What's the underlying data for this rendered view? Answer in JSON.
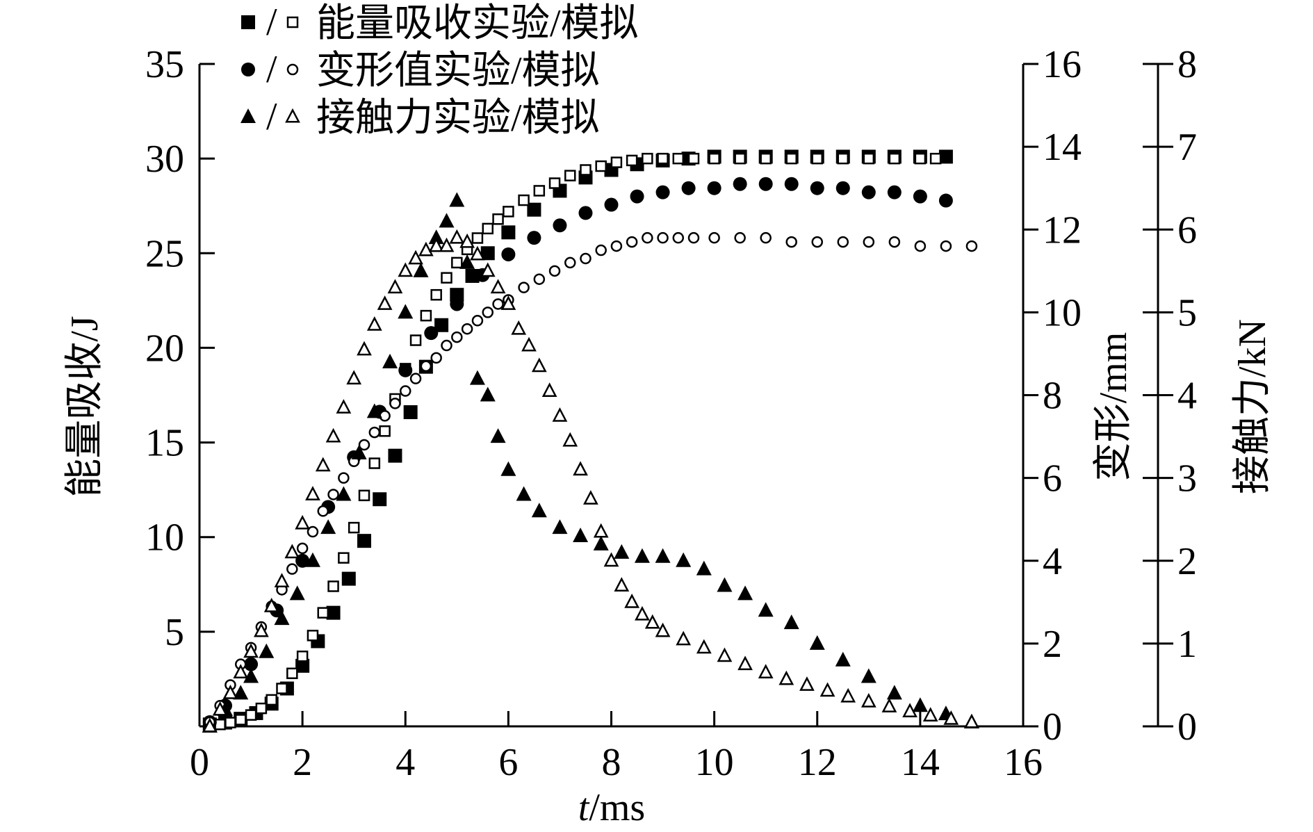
{
  "chart_data": {
    "type": "scatter",
    "title": "",
    "xlabel": {
      "italic": "t",
      "rest": "/ms"
    },
    "xlim": [
      0,
      16
    ],
    "xticks": [
      "0",
      "2",
      "4",
      "6",
      "8",
      "10",
      "12",
      "14",
      "16"
    ],
    "y_axes": [
      {
        "id": "energy",
        "side": "left",
        "label": "能量吸收/J",
        "ylim": [
          0,
          35
        ],
        "ticks": [
          "5",
          "10",
          "15",
          "20",
          "25",
          "30",
          "35"
        ],
        "tick_values": [
          5,
          10,
          15,
          20,
          25,
          30,
          35
        ]
      },
      {
        "id": "deform",
        "side": "right",
        "label": "变形/mm",
        "ylim": [
          0,
          16
        ],
        "ticks": [
          "0",
          "2",
          "4",
          "6",
          "8",
          "10",
          "12",
          "14",
          "16"
        ],
        "tick_values": [
          0,
          2,
          4,
          6,
          8,
          10,
          12,
          14,
          16
        ]
      },
      {
        "id": "force",
        "side": "right-outer",
        "label": "接触力/kN",
        "ylim": [
          0,
          8
        ],
        "ticks": [
          "0",
          "1",
          "2",
          "3",
          "4",
          "5",
          "6",
          "7",
          "8"
        ],
        "tick_values": [
          0,
          1,
          2,
          3,
          4,
          5,
          6,
          7,
          8
        ]
      }
    ],
    "legend": {
      "placement": "top-left",
      "entries": [
        {
          "symbols": "■/□",
          "label": "能量吸收实验/模拟"
        },
        {
          "symbols": "●/○",
          "label": "变形值实验/模拟"
        },
        {
          "symbols": "▲/△",
          "label": "接触力实验/模拟"
        }
      ]
    },
    "series": [
      {
        "id": "energy_exp",
        "axis": "energy",
        "marker": "square",
        "filled": true,
        "x": [
          0.2,
          0.5,
          0.8,
          1.1,
          1.4,
          1.7,
          2.0,
          2.3,
          2.6,
          2.9,
          3.2,
          3.5,
          3.8,
          4.1,
          4.4,
          4.7,
          5.0,
          5.3,
          5.6,
          6.0,
          6.5,
          7.0,
          7.5,
          8.0,
          8.5,
          9.0,
          9.5,
          10.0,
          10.5,
          11.0,
          11.5,
          12.0,
          12.5,
          13.0,
          13.5,
          14.0,
          14.5
        ],
        "y": [
          0.1,
          0.2,
          0.4,
          0.7,
          1.2,
          2.0,
          3.2,
          4.5,
          6.0,
          7.8,
          9.8,
          12.0,
          14.3,
          16.6,
          19.0,
          21.2,
          22.8,
          23.8,
          25.0,
          26.1,
          27.3,
          28.3,
          29.0,
          29.4,
          29.7,
          29.9,
          30.0,
          30.1,
          30.1,
          30.1,
          30.1,
          30.1,
          30.1,
          30.1,
          30.1,
          30.1,
          30.1
        ]
      },
      {
        "id": "energy_sim",
        "axis": "energy",
        "marker": "square",
        "filled": false,
        "x": [
          0.2,
          0.4,
          0.6,
          0.8,
          1.0,
          1.2,
          1.4,
          1.6,
          1.8,
          2.0,
          2.2,
          2.4,
          2.6,
          2.8,
          3.0,
          3.2,
          3.4,
          3.6,
          3.8,
          4.0,
          4.2,
          4.4,
          4.6,
          4.8,
          5.0,
          5.2,
          5.4,
          5.6,
          5.8,
          6.0,
          6.3,
          6.6,
          6.9,
          7.2,
          7.5,
          7.8,
          8.1,
          8.4,
          8.7,
          9.0,
          9.3,
          9.6,
          10.0,
          10.5,
          11.0,
          11.5,
          12.0,
          12.5,
          13.0,
          13.5,
          14.0,
          14.3
        ],
        "y": [
          0.0,
          0.1,
          0.2,
          0.35,
          0.6,
          0.95,
          1.4,
          2.0,
          2.8,
          3.7,
          4.8,
          6.0,
          7.4,
          8.9,
          10.5,
          12.2,
          13.9,
          15.6,
          17.3,
          18.9,
          20.4,
          21.7,
          22.8,
          23.7,
          24.5,
          25.2,
          25.8,
          26.3,
          26.8,
          27.2,
          27.8,
          28.3,
          28.7,
          29.1,
          29.4,
          29.6,
          29.8,
          29.9,
          30.0,
          30.0,
          30.0,
          30.0,
          30.0,
          30.0,
          30.0,
          30.0,
          30.0,
          30.0,
          30.0,
          30.0,
          30.0,
          30.0
        ]
      },
      {
        "id": "deform_exp",
        "axis": "deform",
        "marker": "circle",
        "filled": true,
        "x": [
          0.2,
          0.5,
          1.0,
          1.5,
          2.0,
          2.5,
          3.0,
          3.5,
          4.0,
          4.5,
          5.0,
          5.5,
          6.0,
          6.5,
          7.0,
          7.5,
          8.0,
          8.5,
          9.0,
          9.5,
          10.0,
          10.5,
          11.0,
          11.5,
          12.0,
          12.5,
          13.0,
          13.5,
          14.0,
          14.5
        ],
        "y": [
          0.1,
          0.5,
          1.5,
          2.8,
          4.0,
          5.3,
          6.5,
          7.6,
          8.6,
          9.5,
          10.2,
          10.9,
          11.4,
          11.8,
          12.1,
          12.4,
          12.6,
          12.8,
          12.9,
          13.0,
          13.0,
          13.1,
          13.1,
          13.1,
          13.0,
          13.0,
          12.9,
          12.9,
          12.8,
          12.7
        ]
      },
      {
        "id": "deform_sim",
        "axis": "deform",
        "marker": "circle",
        "filled": false,
        "x": [
          0.2,
          0.4,
          0.6,
          0.8,
          1.0,
          1.2,
          1.4,
          1.6,
          1.8,
          2.0,
          2.2,
          2.4,
          2.6,
          2.8,
          3.0,
          3.2,
          3.4,
          3.6,
          3.8,
          4.0,
          4.2,
          4.4,
          4.6,
          4.8,
          5.0,
          5.2,
          5.4,
          5.6,
          5.8,
          6.0,
          6.3,
          6.6,
          6.9,
          7.2,
          7.5,
          7.8,
          8.1,
          8.4,
          8.7,
          9.0,
          9.3,
          9.6,
          10.0,
          10.5,
          11.0,
          11.5,
          12.0,
          12.5,
          13.0,
          13.5,
          14.0,
          14.5,
          15.0
        ],
        "y": [
          0.1,
          0.5,
          1.0,
          1.5,
          1.9,
          2.4,
          2.9,
          3.3,
          3.8,
          4.3,
          4.7,
          5.2,
          5.6,
          6.0,
          6.4,
          6.8,
          7.1,
          7.5,
          7.8,
          8.1,
          8.4,
          8.7,
          8.9,
          9.2,
          9.4,
          9.6,
          9.8,
          10.0,
          10.2,
          10.3,
          10.6,
          10.8,
          11.0,
          11.2,
          11.3,
          11.5,
          11.6,
          11.7,
          11.8,
          11.8,
          11.8,
          11.8,
          11.8,
          11.8,
          11.8,
          11.7,
          11.7,
          11.7,
          11.7,
          11.7,
          11.6,
          11.6,
          11.6
        ]
      },
      {
        "id": "force_exp",
        "axis": "force",
        "marker": "triangle",
        "filled": true,
        "x": [
          0.2,
          0.5,
          0.8,
          1.0,
          1.3,
          1.6,
          1.9,
          2.2,
          2.5,
          2.8,
          3.1,
          3.4,
          3.7,
          4.0,
          4.3,
          4.6,
          4.8,
          5.0,
          5.2,
          5.4,
          5.6,
          5.8,
          6.0,
          6.3,
          6.6,
          7.0,
          7.4,
          7.8,
          8.2,
          8.6,
          9.0,
          9.4,
          9.8,
          10.2,
          10.6,
          11.0,
          11.5,
          12.0,
          12.5,
          13.0,
          13.5,
          14.0,
          14.5,
          15.0
        ],
        "y": [
          0.0,
          0.2,
          0.4,
          0.6,
          0.9,
          1.3,
          1.6,
          2.0,
          2.4,
          2.8,
          3.3,
          3.8,
          4.4,
          5.0,
          5.5,
          5.9,
          6.1,
          6.35,
          5.6,
          4.2,
          4.0,
          3.5,
          3.1,
          2.8,
          2.6,
          2.4,
          2.3,
          2.2,
          2.1,
          2.05,
          2.05,
          2.0,
          1.9,
          1.7,
          1.6,
          1.4,
          1.25,
          1.0,
          0.8,
          0.6,
          0.4,
          0.25,
          0.15,
          0.05
        ]
      },
      {
        "id": "force_sim",
        "axis": "force",
        "marker": "triangle",
        "filled": false,
        "x": [
          0.2,
          0.4,
          0.6,
          0.8,
          1.0,
          1.2,
          1.4,
          1.6,
          1.8,
          2.0,
          2.2,
          2.4,
          2.6,
          2.8,
          3.0,
          3.2,
          3.4,
          3.6,
          3.8,
          4.0,
          4.2,
          4.4,
          4.6,
          4.8,
          5.0,
          5.2,
          5.4,
          5.6,
          5.8,
          6.0,
          6.2,
          6.4,
          6.6,
          6.8,
          7.0,
          7.2,
          7.4,
          7.6,
          7.8,
          8.0,
          8.2,
          8.4,
          8.6,
          8.8,
          9.0,
          9.4,
          9.8,
          10.2,
          10.6,
          11.0,
          11.4,
          11.8,
          12.2,
          12.6,
          13.0,
          13.4,
          13.8,
          14.2,
          14.6,
          15.0
        ],
        "y": [
          0.0,
          0.2,
          0.4,
          0.65,
          0.9,
          1.15,
          1.45,
          1.75,
          2.1,
          2.45,
          2.8,
          3.15,
          3.5,
          3.85,
          4.2,
          4.55,
          4.85,
          5.1,
          5.3,
          5.5,
          5.65,
          5.75,
          5.8,
          5.8,
          5.9,
          5.85,
          5.7,
          5.5,
          5.3,
          5.1,
          4.8,
          4.6,
          4.35,
          4.05,
          3.75,
          3.45,
          3.1,
          2.75,
          2.35,
          2.0,
          1.7,
          1.5,
          1.35,
          1.25,
          1.15,
          1.05,
          0.95,
          0.85,
          0.75,
          0.65,
          0.57,
          0.5,
          0.43,
          0.36,
          0.3,
          0.24,
          0.18,
          0.13,
          0.09,
          0.05
        ]
      }
    ]
  }
}
